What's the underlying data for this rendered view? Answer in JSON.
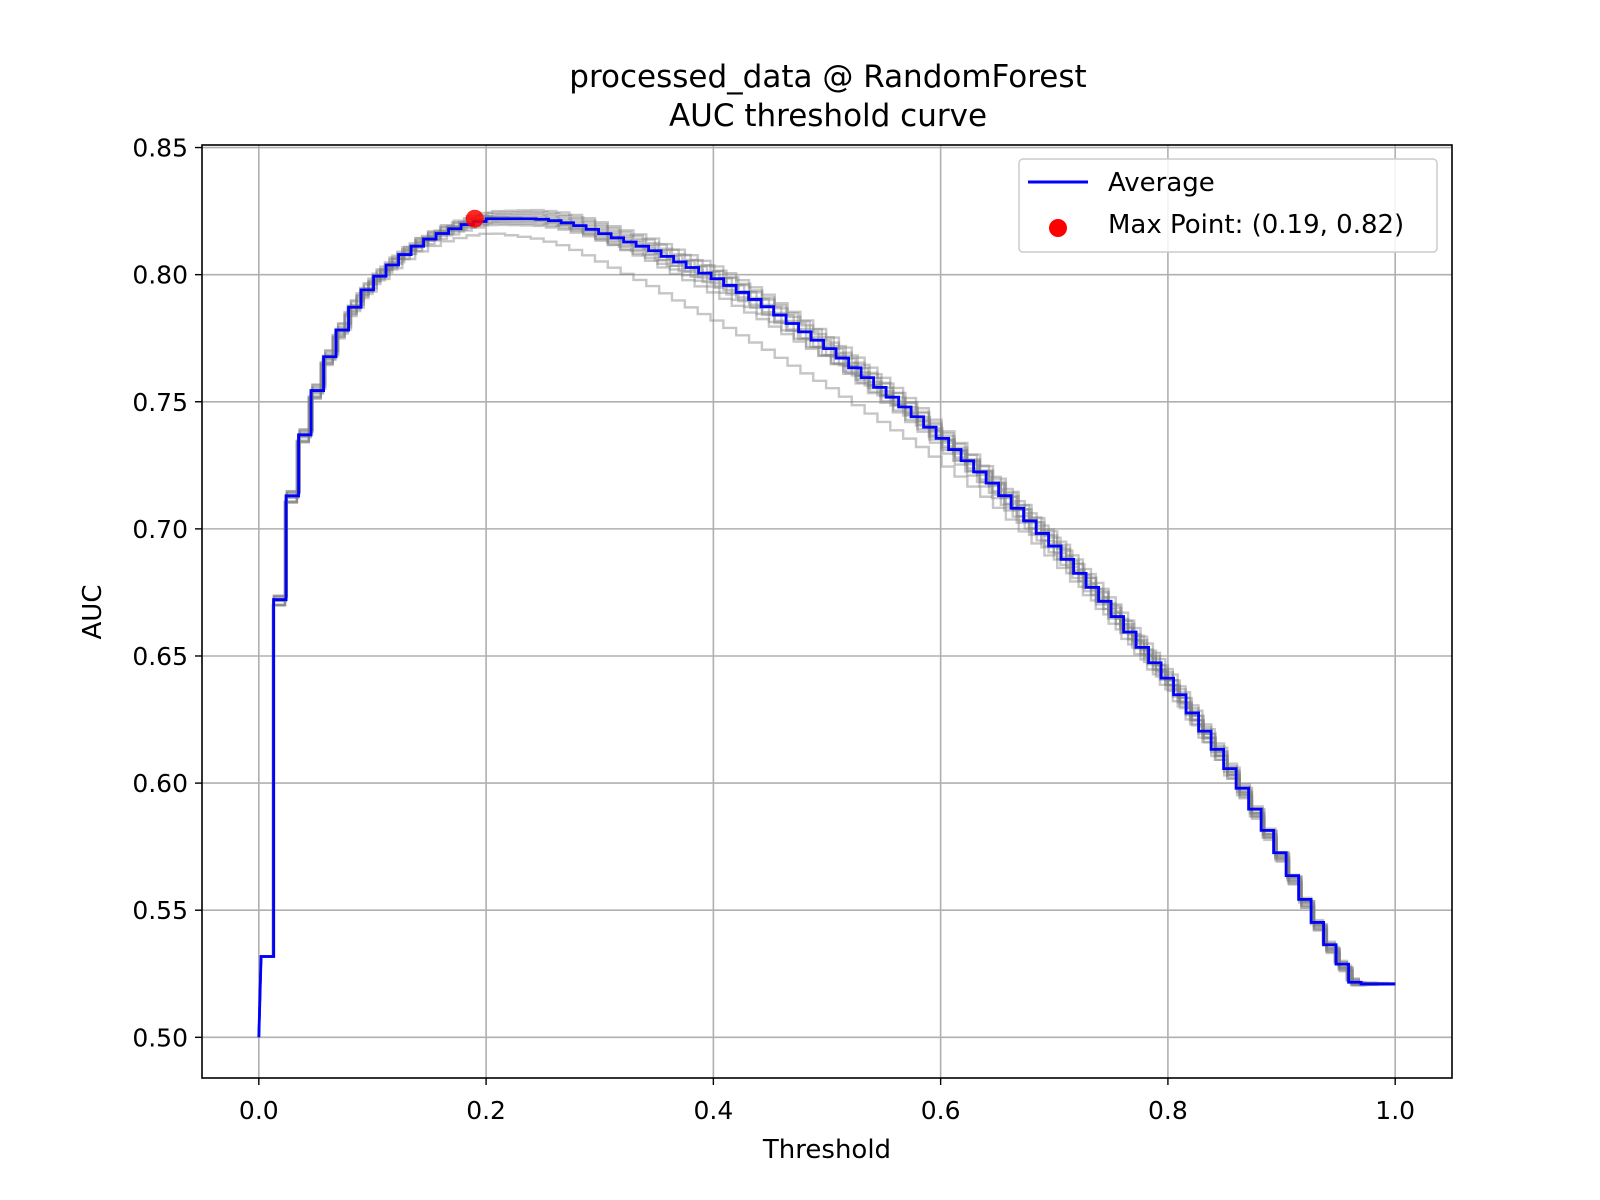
{
  "chart_data": {
    "type": "line",
    "title": "processed_data @ RandomForest",
    "subtitle": "AUC threshold curve",
    "xlabel": "Threshold",
    "ylabel": "AUC",
    "xlim": [
      -0.05,
      1.05
    ],
    "ylim": [
      0.484,
      0.851
    ],
    "x_ticks": [
      0.0,
      0.2,
      0.4,
      0.6,
      0.8,
      1.0
    ],
    "x_tick_labels": [
      "0.0",
      "0.2",
      "0.4",
      "0.6",
      "0.8",
      "1.0"
    ],
    "y_ticks": [
      0.5,
      0.55,
      0.6,
      0.65,
      0.7,
      0.75,
      0.8,
      0.85
    ],
    "y_tick_labels": [
      "0.50",
      "0.55",
      "0.60",
      "0.65",
      "0.70",
      "0.75",
      "0.80",
      "0.85"
    ],
    "grid": true,
    "legend_position": "top-right",
    "colors": {
      "average": "#0000ff",
      "folds": "#808080",
      "max_point": "#ff0000"
    },
    "series": [
      {
        "name": "Average",
        "x": [
          0.0,
          0.01,
          0.02,
          0.03,
          0.04,
          0.05,
          0.06,
          0.07,
          0.08,
          0.09,
          0.1,
          0.12,
          0.14,
          0.16,
          0.18,
          0.19,
          0.2,
          0.22,
          0.24,
          0.26,
          0.28,
          0.3,
          0.32,
          0.34,
          0.36,
          0.38,
          0.4,
          0.42,
          0.44,
          0.46,
          0.48,
          0.5,
          0.52,
          0.54,
          0.56,
          0.58,
          0.6,
          0.62,
          0.64,
          0.66,
          0.68,
          0.7,
          0.72,
          0.74,
          0.76,
          0.78,
          0.8,
          0.82,
          0.84,
          0.86,
          0.88,
          0.9,
          0.92,
          0.94,
          0.96,
          0.97,
          0.98,
          0.99,
          1.0
        ],
        "y": [
          0.5,
          0.659,
          0.703,
          0.728,
          0.746,
          0.76,
          0.771,
          0.78,
          0.788,
          0.794,
          0.799,
          0.807,
          0.813,
          0.817,
          0.82,
          0.821,
          0.822,
          0.822,
          0.822,
          0.821,
          0.819,
          0.816,
          0.813,
          0.81,
          0.806,
          0.802,
          0.798,
          0.793,
          0.788,
          0.782,
          0.776,
          0.77,
          0.763,
          0.756,
          0.749,
          0.742,
          0.734,
          0.726,
          0.718,
          0.709,
          0.7,
          0.691,
          0.681,
          0.671,
          0.66,
          0.649,
          0.638,
          0.625,
          0.612,
          0.598,
          0.583,
          0.567,
          0.55,
          0.534,
          0.521,
          0.521,
          0.521,
          0.521,
          0.521
        ]
      }
    ],
    "fold_offsets": [
      0.0,
      0.002,
      -0.002,
      0.004,
      -0.004,
      0.003,
      -0.003,
      0.006,
      -0.005,
      0.001,
      -0.001,
      0.005
    ],
    "max_point": {
      "label": "Max Point: (0.19, 0.82)",
      "x": 0.19,
      "y": 0.822
    }
  }
}
